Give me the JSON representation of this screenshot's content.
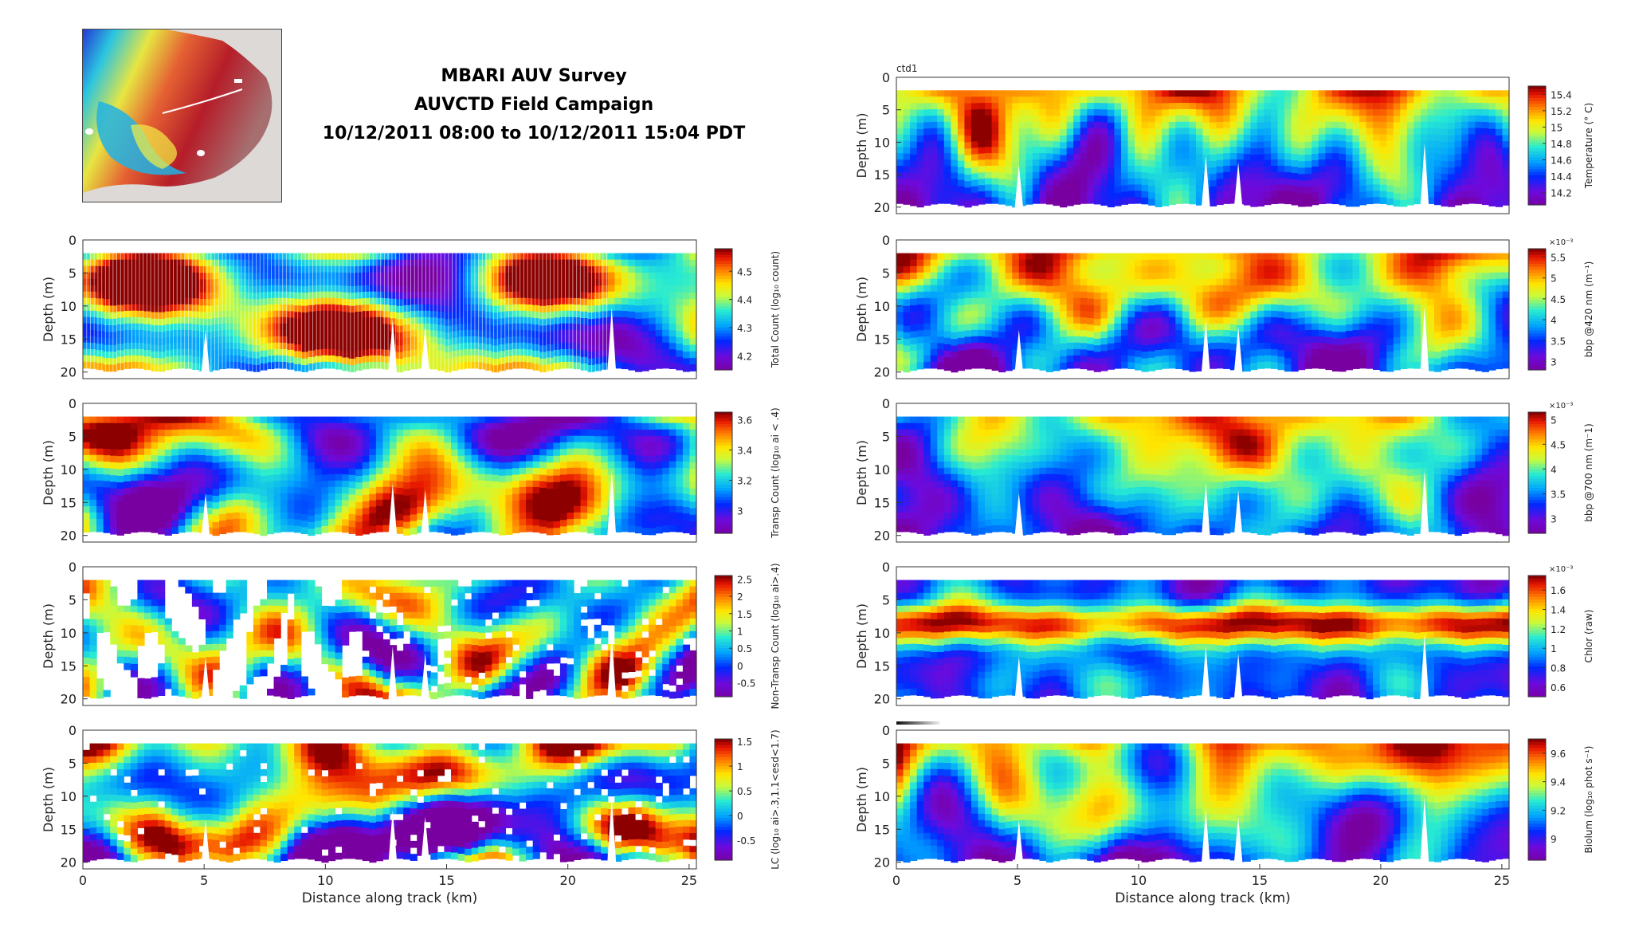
{
  "figure": {
    "title_lines": [
      "MBARI AUV Survey",
      "AUVCTD Field Campaign",
      "10/12/2011 08:00 to 10/12/2011 15:04 PDT"
    ]
  },
  "colormap": "jet",
  "chart_data": [
    {
      "type": "heatmap",
      "id": "total-count",
      "column": "left",
      "row": 1,
      "xlabel": "",
      "ylabel": "Depth (m)",
      "colorbar_label": "Total Count (log₁₀ count)",
      "colorbar_ticks": [
        "4.2",
        "4.3",
        "4.4",
        "4.5"
      ],
      "cbar_range": [
        4.15,
        4.58
      ],
      "xlim": [
        0,
        25.3
      ],
      "ylim": [
        21,
        0
      ],
      "xticks": [],
      "yticks": [
        "0",
        "5",
        "10",
        "15",
        "20"
      ],
      "data_top_depth": 2,
      "seed": 11,
      "scale": 0.55,
      "vertical_tracks": true
    },
    {
      "type": "heatmap",
      "id": "transp-count",
      "column": "left",
      "row": 2,
      "xlabel": "",
      "ylabel": "Depth (m)",
      "colorbar_label": "Transp Count (log₁₀ ai < .4)",
      "colorbar_ticks": [
        "3",
        "3.2",
        "3.4",
        "3.6"
      ],
      "cbar_range": [
        2.85,
        3.65
      ],
      "xlim": [
        0,
        25.3
      ],
      "ylim": [
        21,
        0
      ],
      "xticks": [],
      "yticks": [
        "0",
        "5",
        "10",
        "15",
        "20"
      ],
      "data_top_depth": 2,
      "seed": 23,
      "scale": 0.7
    },
    {
      "type": "heatmap",
      "id": "non-transp-count",
      "column": "left",
      "row": 3,
      "xlabel": "",
      "ylabel": "Depth (m)",
      "colorbar_label": "Non-Transp Count (log₁₀ ai>.4)",
      "colorbar_ticks": [
        "-0.5",
        "0",
        "0.5",
        "1",
        "1.5",
        "2",
        "2.5"
      ],
      "cbar_range": [
        -0.9,
        2.6
      ],
      "xlim": [
        0,
        25.3
      ],
      "ylim": [
        21,
        0
      ],
      "xticks": [],
      "yticks": [
        "0",
        "5",
        "10",
        "15",
        "20"
      ],
      "data_top_depth": 2,
      "seed": 37,
      "scale": 0.75,
      "gaps": true
    },
    {
      "type": "heatmap",
      "id": "lc",
      "column": "left",
      "row": 4,
      "xlabel": "Distance along track (km)",
      "ylabel": "Depth (m)",
      "colorbar_label": "LC (log₁₀ ai>.3,1.1<esd<1.7)",
      "colorbar_ticks": [
        "-0.5",
        "0",
        "0.5",
        "1",
        "1.5"
      ],
      "cbar_range": [
        -0.9,
        1.55
      ],
      "xlim": [
        0,
        25.3
      ],
      "ylim": [
        21,
        0
      ],
      "xticks": [
        "0",
        "5",
        "10",
        "15",
        "20",
        "25"
      ],
      "yticks": [
        "0",
        "5",
        "10",
        "15",
        "20"
      ],
      "data_top_depth": 2,
      "seed": 41,
      "scale": 0.8,
      "sparse_gaps": true
    },
    {
      "type": "heatmap",
      "id": "temperature",
      "column": "right",
      "row": 0,
      "label_top_left": "ctd1",
      "xlabel": "",
      "ylabel": "Depth (m)",
      "colorbar_label": "Temperature (° C)",
      "colorbar_ticks": [
        "14.2",
        "14.4",
        "14.6",
        "14.8",
        "15",
        "15.2",
        "15.4"
      ],
      "cbar_range": [
        14.05,
        15.5
      ],
      "xlim": [
        0,
        25.3
      ],
      "ylim": [
        21,
        0
      ],
      "xticks": [],
      "yticks": [
        "0",
        "5",
        "10",
        "15",
        "20"
      ],
      "data_top_depth": 2,
      "seed": 5,
      "scale": 1.2,
      "stratified": true
    },
    {
      "type": "heatmap",
      "id": "bbp420",
      "column": "right",
      "row": 1,
      "xlabel": "",
      "ylabel": "Depth (m)",
      "colorbar_label": "bbp @420 nm (m⁻¹)",
      "colorbar_exponent": "×10⁻³",
      "colorbar_ticks": [
        "3",
        "3.5",
        "4",
        "4.5",
        "5",
        "5.5"
      ],
      "cbar_range": [
        2.8,
        5.7
      ],
      "xlim": [
        0,
        25.3
      ],
      "ylim": [
        21,
        0
      ],
      "xticks": [],
      "yticks": [
        "0",
        "5",
        "10",
        "15",
        "20"
      ],
      "data_top_depth": 2,
      "seed": 9,
      "scale": 1.1,
      "stratified": true
    },
    {
      "type": "heatmap",
      "id": "bbp700",
      "column": "right",
      "row": 2,
      "xlabel": "",
      "ylabel": "Depth (m)",
      "colorbar_label": "bbp @700 nm (m⁻1)",
      "colorbar_exponent": "×10⁻³",
      "colorbar_ticks": [
        "3",
        "3.5",
        "4",
        "4.5",
        "5"
      ],
      "cbar_range": [
        2.7,
        5.15
      ],
      "xlim": [
        0,
        25.3
      ],
      "ylim": [
        21,
        0
      ],
      "xticks": [],
      "yticks": [
        "0",
        "5",
        "10",
        "15",
        "20"
      ],
      "data_top_depth": 2,
      "seed": 17,
      "scale": 1.0,
      "stratified": true,
      "bright_mid": true
    },
    {
      "type": "heatmap",
      "id": "chlor",
      "column": "right",
      "row": 3,
      "xlabel": "",
      "ylabel": "Depth (m)",
      "colorbar_label": "Chlor (raw)",
      "colorbar_exponent": "×10⁻³",
      "colorbar_ticks": [
        "0.6",
        "0.8",
        "1",
        "1.2",
        "1.4",
        "1.6"
      ],
      "cbar_range": [
        0.5,
        1.75
      ],
      "xlim": [
        0,
        25.3
      ],
      "ylim": [
        21,
        0
      ],
      "xticks": [],
      "yticks": [
        "0",
        "5",
        "10",
        "15",
        "20"
      ],
      "data_top_depth": 2,
      "seed": 29,
      "scale": 1.0,
      "chlor_layer": true
    },
    {
      "type": "heatmap",
      "id": "biolum",
      "column": "right",
      "row": 4,
      "xlabel": "Distance along track (km)",
      "ylabel": "Depth (m)",
      "colorbar_label": "Biolum (log₁₀ phot s⁻¹)",
      "colorbar_ticks": [
        "9",
        "9.2",
        "9.4",
        "9.6"
      ],
      "cbar_range": [
        8.85,
        9.7
      ],
      "xlim": [
        0,
        25.3
      ],
      "ylim": [
        21,
        0
      ],
      "xticks": [
        "0",
        "5",
        "10",
        "15",
        "20",
        "25"
      ],
      "yticks": [
        "0",
        "5",
        "10",
        "15",
        "20"
      ],
      "data_top_depth": 2,
      "seed": 53,
      "scale": 0.9,
      "stratified": true
    }
  ]
}
